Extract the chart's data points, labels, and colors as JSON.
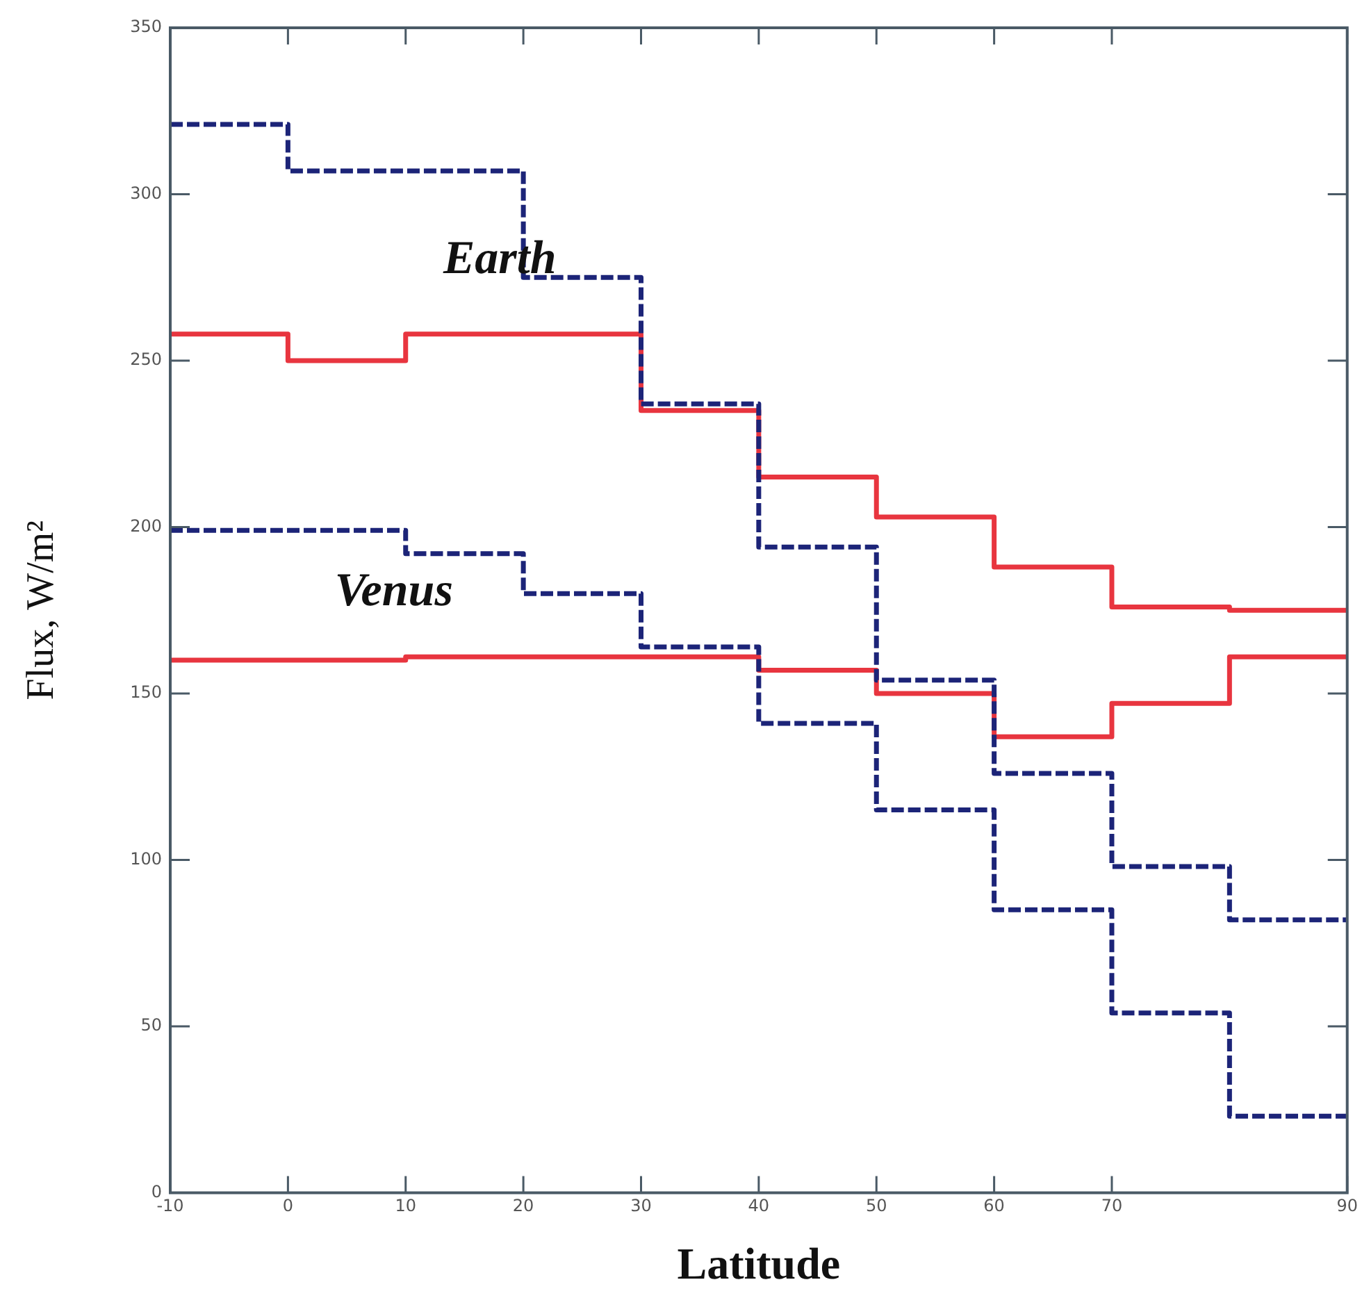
{
  "chart_data": {
    "type": "step",
    "xlabel": "Latitude",
    "ylabel": "Flux, W/m²",
    "x": [
      -10,
      0,
      10,
      20,
      30,
      40,
      50,
      60,
      70,
      80,
      90
    ],
    "xlim": [
      -10,
      90
    ],
    "xticks": [
      -10,
      0,
      10,
      20,
      30,
      40,
      50,
      60,
      70,
      90
    ],
    "ylim": [
      0,
      350
    ],
    "yticks": [
      0,
      50,
      100,
      150,
      200,
      250,
      300,
      350
    ],
    "grid": false,
    "legend": false,
    "series": [
      {
        "color": "#1c2478",
        "line_style": "dashed",
        "values": [
          321,
          307,
          307,
          275,
          237,
          194,
          154,
          126,
          98,
          82,
          82
        ]
      },
      {
        "color": "#e8353f",
        "line_style": "solid",
        "values": [
          258,
          250,
          258,
          258,
          235,
          215,
          203,
          188,
          176,
          175,
          175
        ]
      },
      {
        "color": "#1c2478",
        "line_style": "dashed",
        "values": [
          199,
          199,
          192,
          180,
          164,
          141,
          115,
          85,
          54,
          23,
          23
        ]
      },
      {
        "color": "#e8353f",
        "line_style": "solid",
        "values": [
          160,
          160,
          161,
          161,
          161,
          157,
          150,
          137,
          147,
          161,
          161
        ]
      }
    ],
    "annotations": [
      "Earth",
      "Venus"
    ]
  }
}
